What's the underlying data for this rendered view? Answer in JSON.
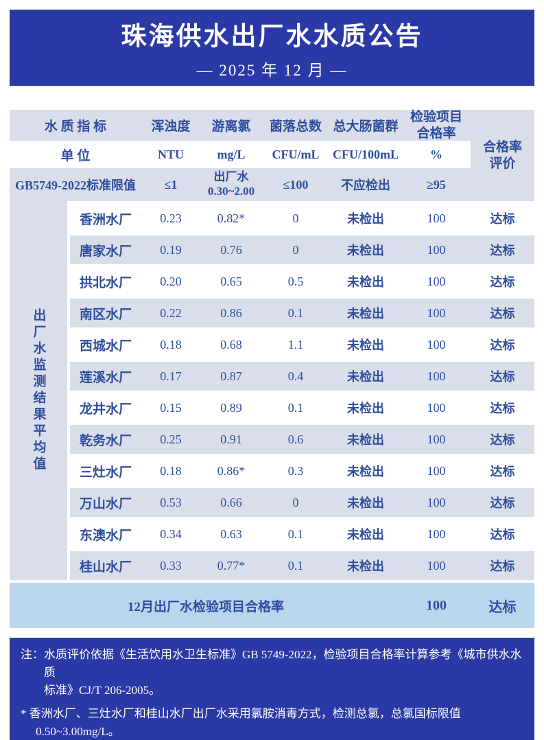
{
  "colors": {
    "banner-blue": "#2b39a6",
    "row-lavender": "#dadeea",
    "summary-blue": "#bad6ee",
    "text-blue": "#2d4d9e"
  },
  "banner": {
    "title": "珠海供水出厂水水质公告",
    "subtitle": "— 2025 年 12 月 —"
  },
  "table": {
    "indicator_row": {
      "label": "水 质 指 标",
      "turbidity": "浑浊度",
      "chlorine": "游离氯",
      "bacteria": "菌落总数",
      "coliform": "总大肠菌群",
      "pass_rate": "检验项目\n合格率"
    },
    "unit_row": {
      "label": "单  位",
      "turbidity": "NTU",
      "chlorine": "mg/L",
      "bacteria": "CFU/mL",
      "coliform": "CFU/100mL",
      "pass_rate": "%"
    },
    "standard_row": {
      "label": "GB5749-2022标准限值",
      "turbidity": "≤1",
      "chlorine": "出厂水\n0.30~2.00",
      "bacteria": "≤100",
      "coliform": "不应检出",
      "pass_rate": "≥95"
    },
    "evaluation_header": "合格率\n评价",
    "side_label": "出厂水监测结果平均值",
    "plants": [
      {
        "name": "香洲水厂",
        "turbidity": "0.23",
        "chlorine": "0.82*",
        "bacteria": "0",
        "coliform": "未检出",
        "pass_rate": "100",
        "evaluation": "达标"
      },
      {
        "name": "唐家水厂",
        "turbidity": "0.19",
        "chlorine": "0.76",
        "bacteria": "0",
        "coliform": "未检出",
        "pass_rate": "100",
        "evaluation": "达标"
      },
      {
        "name": "拱北水厂",
        "turbidity": "0.20",
        "chlorine": "0.65",
        "bacteria": "0.5",
        "coliform": "未检出",
        "pass_rate": "100",
        "evaluation": "达标"
      },
      {
        "name": "南区水厂",
        "turbidity": "0.22",
        "chlorine": "0.86",
        "bacteria": "0.1",
        "coliform": "未检出",
        "pass_rate": "100",
        "evaluation": "达标"
      },
      {
        "name": "西城水厂",
        "turbidity": "0.18",
        "chlorine": "0.68",
        "bacteria": "1.1",
        "coliform": "未检出",
        "pass_rate": "100",
        "evaluation": "达标"
      },
      {
        "name": "莲溪水厂",
        "turbidity": "0.17",
        "chlorine": "0.87",
        "bacteria": "0.4",
        "coliform": "未检出",
        "pass_rate": "100",
        "evaluation": "达标"
      },
      {
        "name": "龙井水厂",
        "turbidity": "0.15",
        "chlorine": "0.89",
        "bacteria": "0.1",
        "coliform": "未检出",
        "pass_rate": "100",
        "evaluation": "达标"
      },
      {
        "name": "乾务水厂",
        "turbidity": "0.25",
        "chlorine": "0.91",
        "bacteria": "0.6",
        "coliform": "未检出",
        "pass_rate": "100",
        "evaluation": "达标"
      },
      {
        "name": "三灶水厂",
        "turbidity": "0.18",
        "chlorine": "0.86*",
        "bacteria": "0.3",
        "coliform": "未检出",
        "pass_rate": "100",
        "evaluation": "达标"
      },
      {
        "name": "万山水厂",
        "turbidity": "0.53",
        "chlorine": "0.66",
        "bacteria": "0",
        "coliform": "未检出",
        "pass_rate": "100",
        "evaluation": "达标"
      },
      {
        "name": "东澳水厂",
        "turbidity": "0.34",
        "chlorine": "0.63",
        "bacteria": "0.1",
        "coliform": "未检出",
        "pass_rate": "100",
        "evaluation": "达标"
      },
      {
        "name": "桂山水厂",
        "turbidity": "0.33",
        "chlorine": "0.77*",
        "bacteria": "0.1",
        "coliform": "未检出",
        "pass_rate": "100",
        "evaluation": "达标"
      }
    ],
    "summary": {
      "label": "12月出厂水检验项目合格率",
      "pass_rate": "100",
      "evaluation": "达标"
    }
  },
  "notes": {
    "note1": "注：水质评价依据《生活饮用水卫生标准》GB 5749-2022，检验项目合格率计算参考《城市供水水质\n标准》CJ/T 206-2005。",
    "note2": "* 香洲水厂、三灶水厂和桂山水厂出厂水采用氯胺消毒方式，检测总氯，总氯国标限值\n0.50~3.00mg/L。"
  }
}
